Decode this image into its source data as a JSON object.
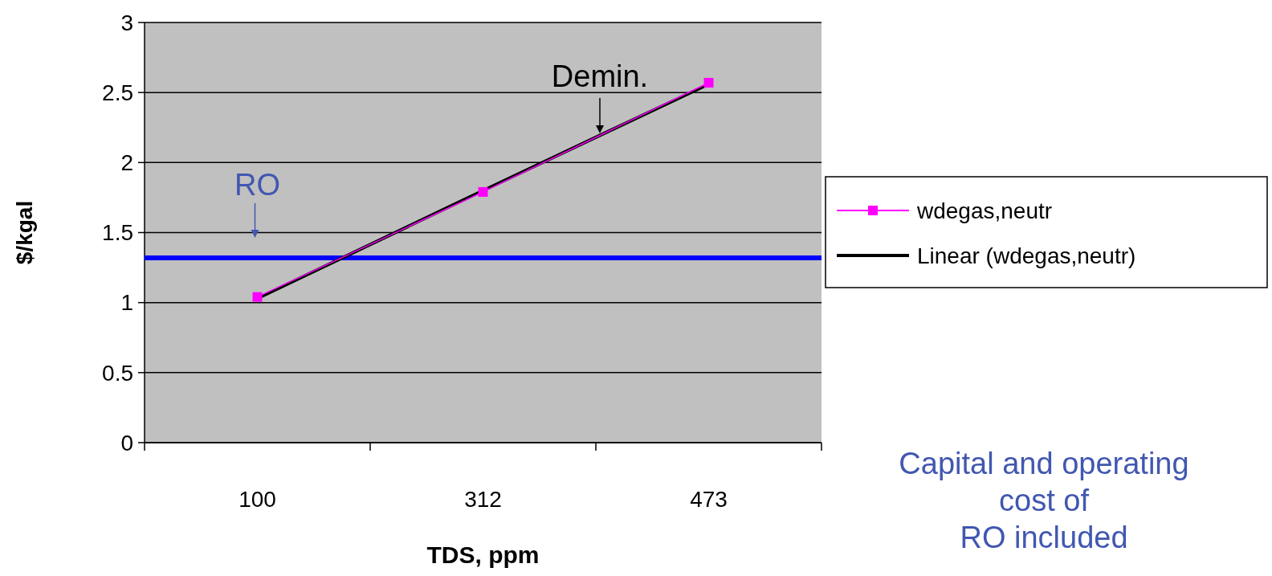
{
  "chart_data": {
    "type": "line",
    "xlabel": "TDS, ppm",
    "ylabel": "$/kgal",
    "categories": [
      "100",
      "312",
      "473"
    ],
    "series": [
      {
        "name": "wdegas,neutr",
        "color": "#ff00ff",
        "values": [
          1.04,
          1.79,
          2.57
        ]
      },
      {
        "name": "Linear (wdegas,neutr)",
        "color": "#000000",
        "values": [
          1.03,
          1.8,
          2.56
        ],
        "marker": "none"
      }
    ],
    "ylim": [
      0,
      3
    ],
    "yticks": [
      0,
      0.5,
      1,
      1.5,
      2,
      2.5,
      3
    ],
    "grid": "y",
    "legend": "right",
    "marker": "square",
    "ref_lines": [
      {
        "axis": "y",
        "value": 1.32,
        "label": "RO",
        "color": "#0000ff"
      }
    ],
    "annotations": [
      "Demin.",
      "Capital and operating\ncost of\nRO included"
    ]
  }
}
